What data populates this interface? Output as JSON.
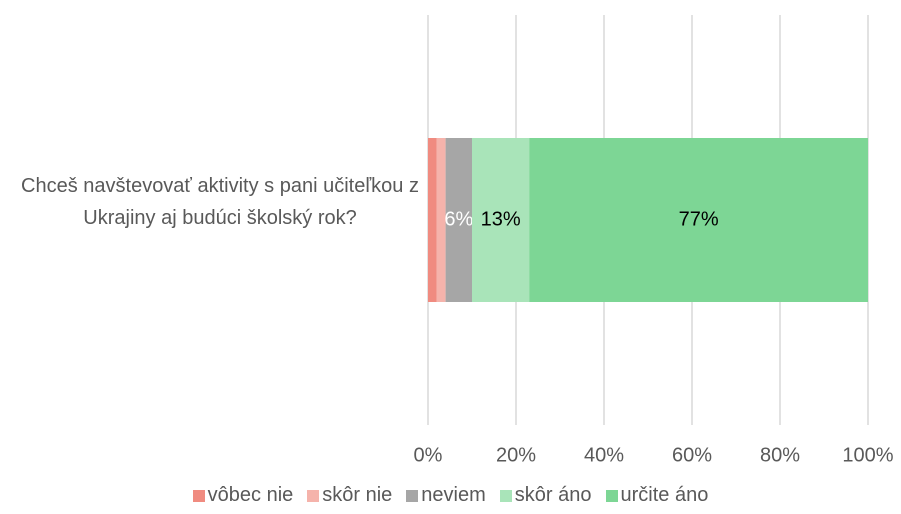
{
  "chart_data": {
    "type": "stacked-bar-horizontal",
    "categories": [
      "Chceš navštevovať aktivity s pani učiteľkou z Ukrajiny aj budúci školský rok?"
    ],
    "series": [
      {
        "name": "vôbec nie",
        "color": "#f08b80",
        "values": [
          2
        ]
      },
      {
        "name": "skôr nie",
        "color": "#f5b3ab",
        "values": [
          2
        ]
      },
      {
        "name": "neviem",
        "color": "#a6a6a6",
        "values": [
          6
        ],
        "value_labels": [
          "6%"
        ],
        "label_color": "#ffffff"
      },
      {
        "name": "skôr áno",
        "color": "#a9e4b9",
        "values": [
          13
        ],
        "value_labels": [
          "13%"
        ],
        "label_color": "#000000"
      },
      {
        "name": "určite áno",
        "color": "#7dd695",
        "values": [
          77
        ],
        "value_labels": [
          "77%"
        ],
        "label_color": "#000000"
      }
    ],
    "xlim": [
      0,
      100
    ],
    "xticks": [
      {
        "value": 0,
        "label": "0%"
      },
      {
        "value": 20,
        "label": "20%"
      },
      {
        "value": 40,
        "label": "40%"
      },
      {
        "value": 60,
        "label": "60%"
      },
      {
        "value": 80,
        "label": "80%"
      },
      {
        "value": 100,
        "label": "100%"
      }
    ],
    "grid": true,
    "legend": "bottom"
  }
}
